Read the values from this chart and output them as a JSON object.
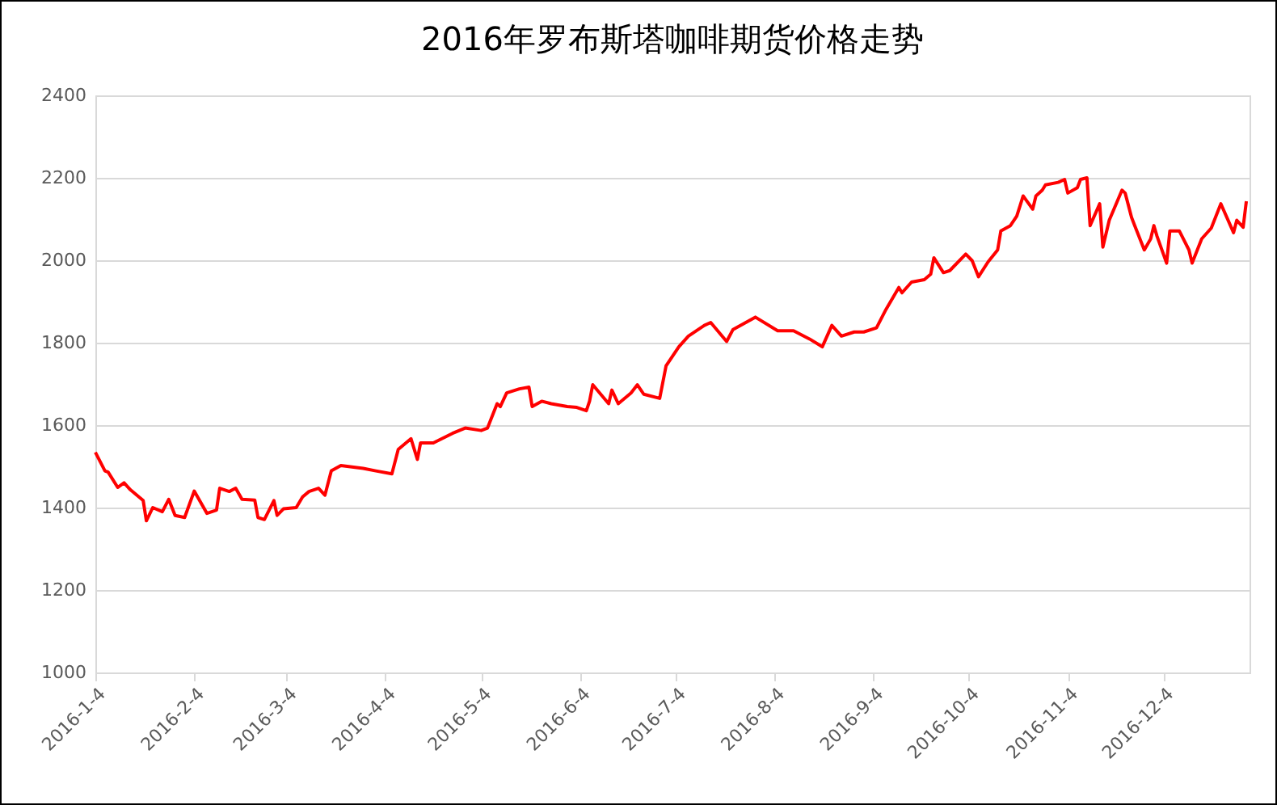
{
  "chart_data": {
    "type": "line",
    "title": "2016年罗布斯塔咖啡期货价格走势",
    "x": [
      "2016-01-04",
      "2016-01-07",
      "2016-01-08",
      "2016-01-11",
      "2016-01-13",
      "2016-01-15",
      "2016-01-19",
      "2016-01-20",
      "2016-01-22",
      "2016-01-25",
      "2016-01-27",
      "2016-01-29",
      "2016-02-01",
      "2016-02-04",
      "2016-02-08",
      "2016-02-11",
      "2016-02-12",
      "2016-02-15",
      "2016-02-17",
      "2016-02-19",
      "2016-02-23",
      "2016-02-24",
      "2016-02-26",
      "2016-02-29",
      "2016-03-01",
      "2016-03-03",
      "2016-03-07",
      "2016-03-09",
      "2016-03-11",
      "2016-03-14",
      "2016-03-16",
      "2016-03-18",
      "2016-03-21",
      "2016-03-23",
      "2016-03-28",
      "2016-04-01",
      "2016-04-06",
      "2016-04-08",
      "2016-04-12",
      "2016-04-14",
      "2016-04-15",
      "2016-04-19",
      "2016-04-25",
      "2016-04-29",
      "2016-05-04",
      "2016-05-06",
      "2016-05-09",
      "2016-05-10",
      "2016-05-12",
      "2016-05-16",
      "2016-05-19",
      "2016-05-20",
      "2016-05-23",
      "2016-05-26",
      "2016-05-31",
      "2016-06-03",
      "2016-06-06",
      "2016-06-07",
      "2016-06-08",
      "2016-06-13",
      "2016-06-14",
      "2016-06-16",
      "2016-06-20",
      "2016-06-22",
      "2016-06-24",
      "2016-06-29",
      "2016-07-01",
      "2016-07-05",
      "2016-07-08",
      "2016-07-13",
      "2016-07-15",
      "2016-07-20",
      "2016-07-22",
      "2016-07-29",
      "2016-08-05",
      "2016-08-10",
      "2016-08-15",
      "2016-08-19",
      "2016-08-22",
      "2016-08-25",
      "2016-08-29",
      "2016-09-01",
      "2016-09-05",
      "2016-09-08",
      "2016-09-12",
      "2016-09-13",
      "2016-09-16",
      "2016-09-20",
      "2016-09-22",
      "2016-09-23",
      "2016-09-26",
      "2016-09-28",
      "2016-10-03",
      "2016-10-05",
      "2016-10-07",
      "2016-10-10",
      "2016-10-13",
      "2016-10-14",
      "2016-10-17",
      "2016-10-19",
      "2016-10-21",
      "2016-10-24",
      "2016-10-25",
      "2016-10-27",
      "2016-10-28",
      "2016-11-01",
      "2016-11-03",
      "2016-11-04",
      "2016-11-07",
      "2016-11-08",
      "2016-11-10",
      "2016-11-11",
      "2016-11-14",
      "2016-11-15",
      "2016-11-17",
      "2016-11-21",
      "2016-11-22",
      "2016-11-24",
      "2016-11-25",
      "2016-11-28",
      "2016-11-30",
      "2016-12-01",
      "2016-12-02",
      "2016-12-05",
      "2016-12-06",
      "2016-12-09",
      "2016-12-12",
      "2016-12-13",
      "2016-12-16",
      "2016-12-19",
      "2016-12-22",
      "2016-12-26",
      "2016-12-27",
      "2016-12-29",
      "2016-12-30"
    ],
    "series": [
      {
        "color": "#ff0000",
        "values": [
          1534,
          1489,
          1486,
          1449,
          1460,
          1443,
          1417,
          1368,
          1400,
          1390,
          1420,
          1381,
          1376,
          1440,
          1386,
          1394,
          1447,
          1439,
          1447,
          1420,
          1418,
          1376,
          1371,
          1417,
          1381,
          1397,
          1400,
          1426,
          1439,
          1447,
          1430,
          1489,
          1502,
          1500,
          1495,
          1489,
          1482,
          1541,
          1567,
          1517,
          1557,
          1557,
          1580,
          1593,
          1587,
          1593,
          1652,
          1645,
          1678,
          1688,
          1692,
          1645,
          1658,
          1652,
          1645,
          1643,
          1635,
          1658,
          1698,
          1652,
          1685,
          1652,
          1678,
          1698,
          1675,
          1665,
          1744,
          1790,
          1816,
          1842,
          1849,
          1803,
          1832,
          1862,
          1829,
          1829,
          1809,
          1790,
          1842,
          1816,
          1826,
          1826,
          1836,
          1881,
          1934,
          1921,
          1947,
          1953,
          1966,
          2006,
          1970,
          1975,
          2015,
          1999,
          1960,
          1996,
          2025,
          2071,
          2084,
          2107,
          2156,
          2124,
          2156,
          2170,
          2183,
          2189,
          2196,
          2163,
          2176,
          2196,
          2200,
          2084,
          2137,
          2032,
          2097,
          2170,
          2163,
          2104,
          2084,
          2025,
          2052,
          2084,
          2058,
          1993,
          2071,
          2071,
          2025,
          1993,
          2052,
          2078,
          2137,
          2067,
          2097,
          2080,
          2143
        ]
      }
    ],
    "xlim": [
      "2016-01-04",
      "2016-12-31"
    ],
    "xticks": [
      {
        "value": "2016-01-04",
        "label": "2016-1-4"
      },
      {
        "value": "2016-02-04",
        "label": "2016-2-4"
      },
      {
        "value": "2016-03-04",
        "label": "2016-3-4"
      },
      {
        "value": "2016-04-04",
        "label": "2016-4-4"
      },
      {
        "value": "2016-05-04",
        "label": "2016-5-4"
      },
      {
        "value": "2016-06-04",
        "label": "2016-6-4"
      },
      {
        "value": "2016-07-04",
        "label": "2016-7-4"
      },
      {
        "value": "2016-08-04",
        "label": "2016-8-4"
      },
      {
        "value": "2016-09-04",
        "label": "2016-9-4"
      },
      {
        "value": "2016-10-04",
        "label": "2016-10-4"
      },
      {
        "value": "2016-11-04",
        "label": "2016-11-4"
      },
      {
        "value": "2016-12-04",
        "label": "2016-12-4"
      }
    ],
    "ylim": [
      1000,
      2400
    ],
    "yticks": [
      1000,
      1200,
      1400,
      1600,
      1800,
      2000,
      2200,
      2400
    ],
    "grid": "y"
  }
}
